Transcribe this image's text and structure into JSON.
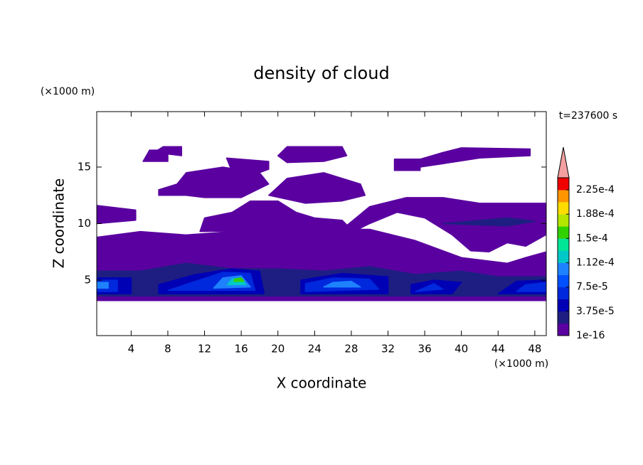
{
  "chart_data": {
    "type": "contour",
    "title": "density of cloud",
    "x_label": "X coordinate",
    "y_label": "Z coordinate",
    "x_unit": "(×1000 m)",
    "y_unit": "(×1000 m)",
    "time_label": "t=237600 s",
    "xlim": [
      0.25,
      49.25
    ],
    "ylim": [
      0.1,
      19.9
    ],
    "xticks": [
      4,
      8,
      12,
      16,
      20,
      24,
      28,
      32,
      36,
      40,
      44,
      48
    ],
    "yticks": [
      5,
      10,
      15
    ],
    "clim": [
      1e-16,
      0.00024375
    ],
    "colors": [
      "#5a00a0",
      "#1e1e82",
      "#0000b4",
      "#0028dc",
      "#0050ff",
      "#1e82ff",
      "#00c8c8",
      "#00e696",
      "#32d200",
      "#b4e600",
      "#ffdc00",
      "#ff9600",
      "#f00000"
    ],
    "extend_color": "#f4a0a0",
    "cticks": [
      {
        "value": 1e-16,
        "label": "1e-16"
      },
      {
        "value": 3.75e-05,
        "label": "3.75e-5"
      },
      {
        "value": 7.5e-05,
        "label": "7.5e-5"
      },
      {
        "value": 0.0001125,
        "label": "1.12e-4"
      },
      {
        "value": 0.00015,
        "label": "1.5e-4"
      },
      {
        "value": 0.0001875,
        "label": "1.88e-4"
      },
      {
        "value": 0.000225,
        "label": "2.25e-4"
      }
    ],
    "regions": [
      {
        "value": 1e-05,
        "points": [
          [
            0.3,
            3.2
          ],
          [
            49.2,
            3.2
          ],
          [
            49.2,
            7.5
          ],
          [
            47,
            7
          ],
          [
            45,
            6.5
          ],
          [
            40,
            7
          ],
          [
            35,
            8.5
          ],
          [
            30,
            9.5
          ],
          [
            25,
            9.5
          ],
          [
            20,
            9.5
          ],
          [
            15,
            9.3
          ],
          [
            10,
            9
          ],
          [
            5,
            9.3
          ],
          [
            0.3,
            8.8
          ]
        ]
      },
      {
        "value": 1e-05,
        "points": [
          [
            27,
            9.5
          ],
          [
            30,
            11.5
          ],
          [
            34,
            12.3
          ],
          [
            38,
            12.3
          ],
          [
            42,
            11.8
          ],
          [
            49.2,
            11.8
          ],
          [
            49.2,
            9
          ],
          [
            47,
            8
          ],
          [
            45,
            8.3
          ],
          [
            43,
            7.5
          ],
          [
            41,
            7.6
          ],
          [
            39,
            9
          ],
          [
            36,
            10.5
          ],
          [
            33,
            11
          ],
          [
            30,
            10
          ],
          [
            28,
            9.2
          ]
        ]
      },
      {
        "value": 1e-05,
        "points": [
          [
            0.3,
            11.6
          ],
          [
            4.5,
            11.2
          ],
          [
            4.5,
            10.3
          ],
          [
            0.3,
            10
          ]
        ]
      },
      {
        "value": 1e-05,
        "points": [
          [
            11.5,
            9.3
          ],
          [
            12,
            10.5
          ],
          [
            15,
            11
          ],
          [
            17,
            12
          ],
          [
            20,
            12
          ],
          [
            22,
            11
          ],
          [
            24,
            10.5
          ],
          [
            27,
            10.3
          ],
          [
            28,
            9.5
          ]
        ]
      },
      {
        "value": 1e-05,
        "points": [
          [
            7,
            12.5
          ],
          [
            7,
            13
          ],
          [
            9,
            13.5
          ],
          [
            10,
            14.5
          ],
          [
            14,
            15
          ],
          [
            18,
            14.5
          ],
          [
            19,
            13.5
          ],
          [
            16,
            12.3
          ],
          [
            12,
            12.3
          ],
          [
            10,
            12.5
          ]
        ]
      },
      {
        "value": 1e-05,
        "points": [
          [
            19,
            12.5
          ],
          [
            21,
            14
          ],
          [
            25,
            14.5
          ],
          [
            29,
            13.5
          ],
          [
            29.5,
            12.5
          ],
          [
            27,
            12
          ],
          [
            23,
            11.8
          ]
        ]
      },
      {
        "value": 1e-05,
        "points": [
          [
            5.3,
            15.5
          ],
          [
            8,
            15.5
          ],
          [
            8,
            16.5
          ],
          [
            6,
            16.5
          ]
        ]
      },
      {
        "value": 1e-05,
        "points": [
          [
            6.5,
            16.3
          ],
          [
            7.5,
            16.8
          ],
          [
            9.5,
            16.8
          ],
          [
            9.5,
            16
          ]
        ]
      },
      {
        "value": 1e-05,
        "points": [
          [
            20,
            16
          ],
          [
            21,
            16.8
          ],
          [
            27,
            16.8
          ],
          [
            27.5,
            16
          ],
          [
            25,
            15.5
          ],
          [
            21,
            15.4
          ]
        ]
      },
      {
        "value": 1e-05,
        "points": [
          [
            14.4,
            15.8
          ],
          [
            19,
            15.5
          ],
          [
            19,
            14.8
          ],
          [
            17,
            14.2
          ],
          [
            15,
            14.6
          ]
        ]
      },
      {
        "value": 1e-05,
        "points": [
          [
            35.5,
            15
          ],
          [
            35.5,
            15.7
          ],
          [
            38,
            16.3
          ],
          [
            40,
            16.7
          ],
          [
            47.5,
            16.6
          ],
          [
            47.5,
            16
          ],
          [
            42,
            15.8
          ],
          [
            38,
            15.3
          ]
        ]
      },
      {
        "value": 1e-05,
        "points": [
          [
            32.7,
            14.7
          ],
          [
            35.5,
            14.7
          ],
          [
            35.5,
            15.7
          ],
          [
            32.7,
            15.7
          ]
        ]
      },
      {
        "value": 2.5e-05,
        "points": [
          [
            0.3,
            3.6
          ],
          [
            49.2,
            3.6
          ],
          [
            49.2,
            5.3
          ],
          [
            44,
            5.3
          ],
          [
            40,
            5.8
          ],
          [
            35,
            5.5
          ],
          [
            30,
            6.2
          ],
          [
            25,
            5.8
          ],
          [
            20,
            6
          ],
          [
            15,
            6
          ],
          [
            10,
            6.5
          ],
          [
            5,
            5.8
          ],
          [
            0.3,
            5.8
          ]
        ]
      },
      {
        "value": 2.5e-05,
        "points": [
          [
            38,
            10
          ],
          [
            45,
            10.5
          ],
          [
            48,
            10.2
          ],
          [
            45,
            9.8
          ]
        ]
      },
      {
        "value": 4e-05,
        "points": [
          [
            0.3,
            3.8
          ],
          [
            4,
            3.8
          ],
          [
            4,
            5.2
          ],
          [
            0.3,
            5.2
          ]
        ]
      },
      {
        "value": 4e-05,
        "points": [
          [
            7,
            3.8
          ],
          [
            18.5,
            3.8
          ],
          [
            18,
            5.8
          ],
          [
            15,
            6
          ],
          [
            11,
            5.5
          ],
          [
            7,
            4.6
          ]
        ]
      },
      {
        "value": 4e-05,
        "points": [
          [
            22.5,
            3.8
          ],
          [
            32,
            3.8
          ],
          [
            32,
            5.3
          ],
          [
            27,
            5.6
          ],
          [
            22.5,
            5
          ]
        ]
      },
      {
        "value": 4e-05,
        "points": [
          [
            34.5,
            3.8
          ],
          [
            39,
            3.8
          ],
          [
            40,
            4.8
          ],
          [
            37,
            5
          ],
          [
            34.5,
            4.6
          ]
        ]
      },
      {
        "value": 4e-05,
        "points": [
          [
            44,
            3.8
          ],
          [
            49.2,
            3.8
          ],
          [
            49.2,
            5
          ],
          [
            46,
            4.9
          ]
        ]
      },
      {
        "value": 6e-05,
        "points": [
          [
            0.3,
            4
          ],
          [
            2.5,
            4
          ],
          [
            2.5,
            5
          ],
          [
            0.3,
            5
          ]
        ]
      },
      {
        "value": 6e-05,
        "points": [
          [
            8,
            4.1
          ],
          [
            17.5,
            4.1
          ],
          [
            17,
            5.6
          ],
          [
            14,
            5.7
          ],
          [
            11,
            4.9
          ]
        ]
      },
      {
        "value": 6e-05,
        "points": [
          [
            23,
            4
          ],
          [
            31,
            4.2
          ],
          [
            30,
            5.1
          ],
          [
            26,
            5.2
          ],
          [
            23,
            4.7
          ]
        ]
      },
      {
        "value": 6e-05,
        "points": [
          [
            35,
            4
          ],
          [
            38,
            4.2
          ],
          [
            37,
            4.7
          ]
        ]
      },
      {
        "value": 6e-05,
        "points": [
          [
            46,
            4
          ],
          [
            49.2,
            4
          ],
          [
            49.2,
            4.8
          ],
          [
            47,
            4.6
          ]
        ]
      },
      {
        "value": 0.0001,
        "points": [
          [
            0.3,
            4.3
          ],
          [
            1.5,
            4.3
          ],
          [
            1.5,
            4.8
          ],
          [
            0.3,
            4.8
          ]
        ]
      },
      {
        "value": 0.0001,
        "points": [
          [
            13,
            4.3
          ],
          [
            17,
            4.4
          ],
          [
            16,
            5.4
          ],
          [
            14,
            5.2
          ]
        ]
      },
      {
        "value": 0.0001,
        "points": [
          [
            25,
            4.4
          ],
          [
            29,
            4.4
          ],
          [
            28,
            4.9
          ],
          [
            26,
            4.8
          ]
        ]
      },
      {
        "value": 0.00013,
        "points": [
          [
            14.5,
            4.6
          ],
          [
            16.5,
            4.6
          ],
          [
            16,
            5.2
          ],
          [
            15,
            5.1
          ]
        ]
      },
      {
        "value": 0.00016,
        "points": [
          [
            15.2,
            4.9
          ],
          [
            16.3,
            4.9
          ],
          [
            16,
            5.2
          ],
          [
            15.3,
            5.1
          ]
        ]
      }
    ]
  }
}
